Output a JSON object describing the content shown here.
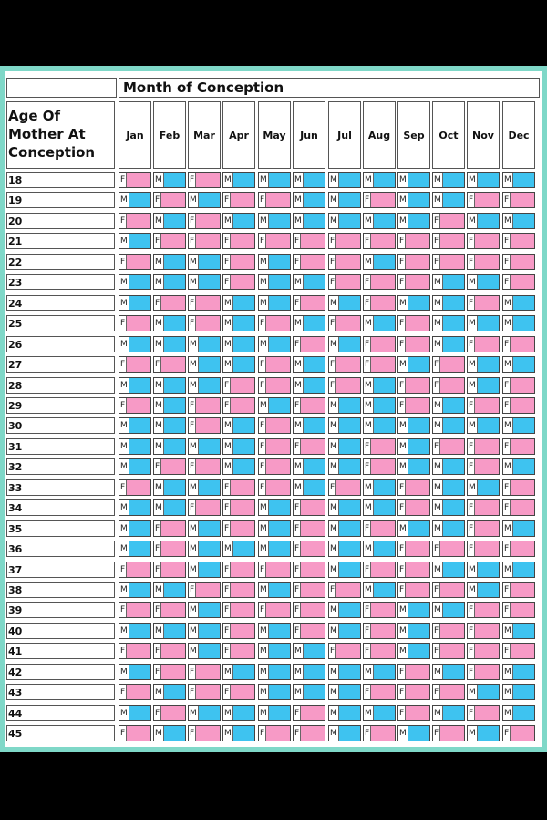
{
  "table": {
    "month_header": "Month of Conception",
    "age_header_lines": [
      "Age Of",
      "Mother At",
      "Conception"
    ],
    "months": [
      "Jan",
      "Feb",
      "Mar",
      "Apr",
      "May",
      "Jun",
      "Jul",
      "Aug",
      "Sep",
      "Oct",
      "Nov",
      "Dec"
    ],
    "colors": {
      "F": "#f79ac6",
      "M": "#3ec3f0"
    },
    "rows": [
      {
        "age": "18",
        "g": [
          "F",
          "M",
          "F",
          "M",
          "M",
          "M",
          "M",
          "M",
          "M",
          "M",
          "M",
          "M"
        ]
      },
      {
        "age": "19",
        "g": [
          "M",
          "F",
          "M",
          "F",
          "F",
          "M",
          "M",
          "F",
          "M",
          "M",
          "F",
          "F"
        ]
      },
      {
        "age": "20",
        "g": [
          "F",
          "M",
          "F",
          "M",
          "M",
          "M",
          "M",
          "M",
          "M",
          "F",
          "M",
          "M"
        ]
      },
      {
        "age": "21",
        "g": [
          "M",
          "F",
          "F",
          "F",
          "F",
          "F",
          "F",
          "F",
          "F",
          "F",
          "F",
          "F"
        ]
      },
      {
        "age": "22",
        "g": [
          "F",
          "M",
          "M",
          "F",
          "M",
          "F",
          "F",
          "M",
          "F",
          "F",
          "F",
          "F"
        ]
      },
      {
        "age": "23",
        "g": [
          "M",
          "M",
          "M",
          "F",
          "M",
          "M",
          "F",
          "F",
          "F",
          "M",
          "M",
          "F"
        ]
      },
      {
        "age": "24",
        "g": [
          "M",
          "F",
          "F",
          "M",
          "M",
          "F",
          "M",
          "F",
          "M",
          "M",
          "F",
          "M"
        ]
      },
      {
        "age": "25",
        "g": [
          "F",
          "M",
          "F",
          "M",
          "F",
          "M",
          "F",
          "M",
          "F",
          "M",
          "M",
          "M"
        ]
      },
      {
        "age": "26",
        "g": [
          "M",
          "M",
          "M",
          "M",
          "M",
          "F",
          "M",
          "F",
          "F",
          "M",
          "F",
          "F"
        ]
      },
      {
        "age": "27",
        "g": [
          "F",
          "F",
          "M",
          "M",
          "F",
          "M",
          "F",
          "F",
          "M",
          "F",
          "M",
          "M"
        ]
      },
      {
        "age": "28",
        "g": [
          "M",
          "M",
          "M",
          "F",
          "F",
          "M",
          "F",
          "M",
          "F",
          "F",
          "M",
          "F"
        ]
      },
      {
        "age": "29",
        "g": [
          "F",
          "M",
          "F",
          "F",
          "M",
          "F",
          "M",
          "M",
          "F",
          "M",
          "F",
          "F"
        ]
      },
      {
        "age": "30",
        "g": [
          "M",
          "M",
          "F",
          "M",
          "F",
          "M",
          "M",
          "M",
          "M",
          "M",
          "M",
          "M"
        ]
      },
      {
        "age": "31",
        "g": [
          "M",
          "M",
          "M",
          "M",
          "F",
          "F",
          "M",
          "F",
          "M",
          "F",
          "F",
          "F"
        ]
      },
      {
        "age": "32",
        "g": [
          "M",
          "F",
          "F",
          "M",
          "F",
          "M",
          "M",
          "F",
          "M",
          "M",
          "F",
          "M"
        ]
      },
      {
        "age": "33",
        "g": [
          "F",
          "M",
          "M",
          "F",
          "F",
          "M",
          "F",
          "M",
          "F",
          "M",
          "M",
          "F"
        ]
      },
      {
        "age": "34",
        "g": [
          "M",
          "M",
          "F",
          "F",
          "M",
          "F",
          "M",
          "M",
          "F",
          "M",
          "F",
          "F"
        ]
      },
      {
        "age": "35",
        "g": [
          "M",
          "F",
          "M",
          "F",
          "M",
          "F",
          "M",
          "F",
          "M",
          "M",
          "F",
          "M"
        ]
      },
      {
        "age": "36",
        "g": [
          "M",
          "F",
          "M",
          "M",
          "M",
          "F",
          "M",
          "M",
          "F",
          "F",
          "F",
          "F"
        ]
      },
      {
        "age": "37",
        "g": [
          "F",
          "F",
          "M",
          "F",
          "F",
          "F",
          "M",
          "F",
          "F",
          "M",
          "M",
          "M"
        ]
      },
      {
        "age": "38",
        "g": [
          "M",
          "M",
          "F",
          "F",
          "M",
          "F",
          "F",
          "M",
          "F",
          "F",
          "M",
          "F"
        ]
      },
      {
        "age": "39",
        "g": [
          "F",
          "F",
          "M",
          "F",
          "F",
          "F",
          "M",
          "F",
          "M",
          "M",
          "F",
          "F"
        ]
      },
      {
        "age": "40",
        "g": [
          "M",
          "M",
          "M",
          "F",
          "M",
          "F",
          "M",
          "F",
          "M",
          "F",
          "F",
          "M"
        ]
      },
      {
        "age": "41",
        "g": [
          "F",
          "F",
          "M",
          "F",
          "M",
          "M",
          "F",
          "F",
          "M",
          "F",
          "F",
          "F"
        ]
      },
      {
        "age": "42",
        "g": [
          "M",
          "F",
          "F",
          "M",
          "M",
          "M",
          "M",
          "M",
          "F",
          "M",
          "F",
          "M"
        ]
      },
      {
        "age": "43",
        "g": [
          "F",
          "M",
          "F",
          "F",
          "M",
          "M",
          "M",
          "F",
          "F",
          "F",
          "M",
          "M"
        ]
      },
      {
        "age": "44",
        "g": [
          "M",
          "F",
          "M",
          "M",
          "M",
          "F",
          "M",
          "M",
          "F",
          "M",
          "F",
          "M"
        ]
      },
      {
        "age": "45",
        "g": [
          "F",
          "M",
          "F",
          "M",
          "F",
          "F",
          "M",
          "F",
          "M",
          "F",
          "M",
          "F"
        ]
      }
    ]
  }
}
